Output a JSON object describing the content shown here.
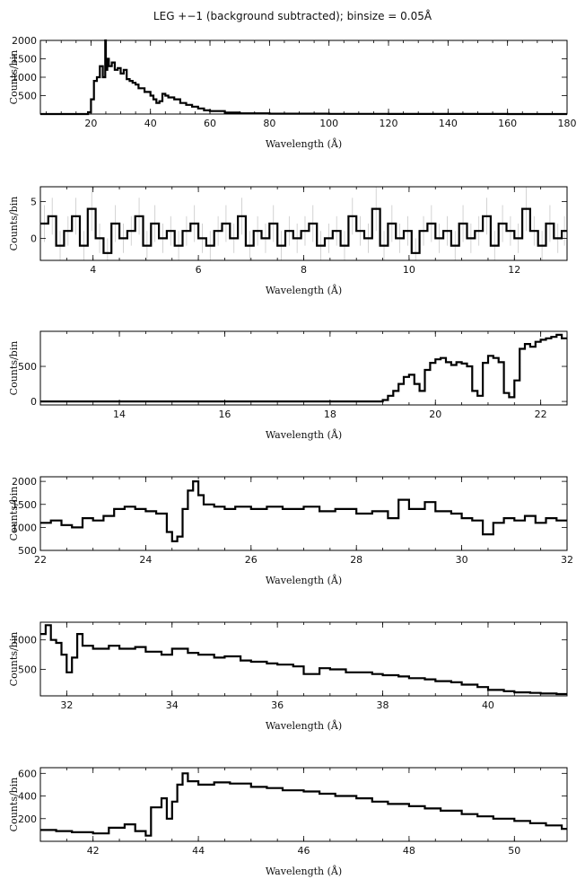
{
  "figure": {
    "title": "LEG +−1 (background subtracted); binsize = 0.05Å"
  },
  "chart_data": [
    {
      "type": "line",
      "step": true,
      "xlabel": "Wavelength (Å)",
      "ylabel": "Counts/bin",
      "xlim": [
        3,
        180
      ],
      "ylim": [
        0,
        2000
      ],
      "xticks": [
        20,
        40,
        60,
        80,
        100,
        120,
        140,
        160,
        180
      ],
      "yticks": [
        500,
        1000,
        1500,
        2000
      ],
      "x": [
        3,
        18,
        19,
        20,
        21,
        22,
        23,
        24,
        24.8,
        25,
        25.5,
        26,
        27,
        28,
        29,
        30,
        31,
        32,
        33,
        34,
        35,
        36,
        38,
        40,
        41,
        42,
        43,
        44,
        45,
        46,
        48,
        50,
        52,
        54,
        56,
        58,
        60,
        65,
        70,
        80,
        100,
        120,
        140,
        160,
        180
      ],
      "y": [
        0,
        0,
        50,
        400,
        900,
        1000,
        1300,
        1000,
        2000,
        1200,
        1500,
        1300,
        1400,
        1200,
        1250,
        1100,
        1200,
        950,
        900,
        850,
        800,
        700,
        600,
        500,
        400,
        300,
        350,
        550,
        500,
        450,
        400,
        300,
        250,
        200,
        150,
        100,
        80,
        40,
        20,
        10,
        5,
        3,
        2,
        1,
        0
      ]
    },
    {
      "type": "line",
      "step": true,
      "xlabel": "Wavelength (Å)",
      "ylabel": "Counts/bin",
      "xlim": [
        3,
        13
      ],
      "ylim": [
        -3,
        7
      ],
      "xticks": [
        4,
        6,
        8,
        10,
        12
      ],
      "yticks": [
        0,
        5
      ],
      "x": [
        3,
        3.15,
        3.3,
        3.45,
        3.6,
        3.75,
        3.9,
        4.05,
        4.2,
        4.35,
        4.5,
        4.65,
        4.8,
        4.95,
        5.1,
        5.25,
        5.4,
        5.55,
        5.7,
        5.85,
        6,
        6.15,
        6.3,
        6.45,
        6.6,
        6.75,
        6.9,
        7.05,
        7.2,
        7.35,
        7.5,
        7.65,
        7.8,
        7.95,
        8.1,
        8.25,
        8.4,
        8.55,
        8.7,
        8.85,
        9,
        9.15,
        9.3,
        9.45,
        9.6,
        9.75,
        9.9,
        10.05,
        10.2,
        10.35,
        10.5,
        10.65,
        10.8,
        10.95,
        11.1,
        11.25,
        11.4,
        11.55,
        11.7,
        11.85,
        12,
        12.15,
        12.3,
        12.45,
        12.6,
        12.75,
        12.9
      ],
      "y": [
        2,
        3,
        -1,
        1,
        3,
        -1,
        4,
        0,
        -2,
        2,
        0,
        1,
        3,
        -1,
        2,
        0,
        1,
        -1,
        1,
        2,
        0,
        -1,
        1,
        2,
        0,
        3,
        -1,
        1,
        0,
        2,
        -1,
        1,
        0,
        1,
        2,
        -1,
        0,
        1,
        -1,
        3,
        1,
        0,
        4,
        -1,
        2,
        0,
        1,
        -2,
        1,
        2,
        0,
        1,
        -1,
        2,
        0,
        1,
        3,
        -1,
        2,
        1,
        0,
        4,
        1,
        -1,
        2,
        0,
        1
      ],
      "errors": [
        2.5,
        2.5,
        2,
        2,
        2.5,
        2,
        3,
        2,
        2,
        2.5,
        2,
        2,
        2.5,
        2,
        2.5,
        2,
        2,
        2,
        2,
        2.5,
        2,
        2,
        2,
        2.5,
        2,
        2.5,
        2,
        2,
        2,
        2.5,
        2,
        2,
        2,
        2,
        2.5,
        2,
        2,
        2,
        2,
        2.5,
        2,
        2,
        3,
        2,
        2.5,
        2,
        2,
        2,
        2,
        2.5,
        2,
        2,
        2,
        2.5,
        2,
        2,
        2.5,
        2,
        2.5,
        2,
        2,
        3,
        2,
        2,
        2.5,
        2,
        2
      ]
    },
    {
      "type": "line",
      "step": true,
      "xlabel": "Wavelength (Å)",
      "ylabel": "Counts/bin",
      "xlim": [
        12.5,
        22.5
      ],
      "ylim": [
        -50,
        1000
      ],
      "xticks": [
        14,
        16,
        18,
        20,
        22
      ],
      "yticks": [
        0,
        500
      ],
      "x": [
        12.5,
        19.0,
        19.1,
        19.2,
        19.3,
        19.4,
        19.5,
        19.6,
        19.7,
        19.8,
        19.9,
        20.0,
        20.1,
        20.2,
        20.3,
        20.4,
        20.5,
        20.6,
        20.7,
        20.8,
        20.9,
        21.0,
        21.1,
        21.2,
        21.3,
        21.4,
        21.5,
        21.6,
        21.7,
        21.8,
        21.9,
        22.0,
        22.1,
        22.2,
        22.3,
        22.4
      ],
      "y": [
        0,
        20,
        80,
        150,
        250,
        350,
        380,
        250,
        150,
        450,
        550,
        600,
        620,
        560,
        520,
        560,
        540,
        500,
        150,
        80,
        550,
        650,
        620,
        560,
        120,
        60,
        300,
        750,
        820,
        780,
        850,
        880,
        900,
        920,
        950,
        900
      ]
    },
    {
      "type": "line",
      "step": true,
      "xlabel": "Wavelength (Å)",
      "ylabel": "Counts/bin",
      "xlim": [
        22,
        32
      ],
      "ylim": [
        500,
        2100
      ],
      "xticks": [
        22,
        24,
        26,
        28,
        30,
        32
      ],
      "yticks": [
        500,
        1000,
        1500,
        2000
      ],
      "x": [
        22,
        22.2,
        22.4,
        22.6,
        22.8,
        23.0,
        23.2,
        23.4,
        23.6,
        23.8,
        24.0,
        24.2,
        24.4,
        24.5,
        24.6,
        24.7,
        24.8,
        24.9,
        25.0,
        25.1,
        25.3,
        25.5,
        25.7,
        26.0,
        26.3,
        26.6,
        27.0,
        27.3,
        27.6,
        28.0,
        28.3,
        28.6,
        28.8,
        29.0,
        29.3,
        29.5,
        29.8,
        30.0,
        30.2,
        30.4,
        30.6,
        30.8,
        31.0,
        31.2,
        31.4,
        31.6,
        31.8
      ],
      "y": [
        1100,
        1150,
        1050,
        1000,
        1200,
        1150,
        1250,
        1400,
        1450,
        1400,
        1350,
        1300,
        900,
        700,
        800,
        1400,
        1800,
        2000,
        1700,
        1500,
        1450,
        1400,
        1450,
        1400,
        1450,
        1400,
        1450,
        1350,
        1400,
        1300,
        1350,
        1200,
        1600,
        1400,
        1550,
        1350,
        1300,
        1200,
        1150,
        850,
        1100,
        1200,
        1150,
        1250,
        1100,
        1200,
        1150
      ]
    },
    {
      "type": "line",
      "step": true,
      "xlabel": "Wavelength (Å)",
      "ylabel": "Counts/bin",
      "xlim": [
        31.5,
        41.5
      ],
      "ylim": [
        50,
        1300
      ],
      "xticks": [
        32,
        34,
        36,
        38,
        40
      ],
      "yticks": [
        500,
        1000
      ],
      "x": [
        31.5,
        31.6,
        31.7,
        31.8,
        31.9,
        32.0,
        32.1,
        32.2,
        32.3,
        32.5,
        32.8,
        33.0,
        33.3,
        33.5,
        33.8,
        34.0,
        34.3,
        34.5,
        34.8,
        35.0,
        35.3,
        35.5,
        35.8,
        36.0,
        36.3,
        36.5,
        36.8,
        37.0,
        37.3,
        37.5,
        37.8,
        38.0,
        38.3,
        38.5,
        38.8,
        39.0,
        39.3,
        39.5,
        39.8,
        40.0,
        40.3,
        40.5,
        40.8,
        41.0,
        41.3
      ],
      "y": [
        1100,
        1250,
        1000,
        950,
        750,
        450,
        700,
        1100,
        900,
        850,
        900,
        850,
        880,
        800,
        750,
        850,
        780,
        750,
        700,
        720,
        650,
        630,
        600,
        580,
        550,
        420,
        520,
        500,
        450,
        450,
        420,
        400,
        380,
        350,
        330,
        300,
        280,
        240,
        200,
        150,
        130,
        110,
        100,
        90,
        80
      ]
    },
    {
      "type": "line",
      "step": true,
      "xlabel": "Wavelength (Å)",
      "ylabel": "Counts/bin",
      "xlim": [
        41,
        51
      ],
      "ylim": [
        0,
        650
      ],
      "xticks": [
        42,
        44,
        46,
        48,
        50
      ],
      "yticks": [
        200,
        400,
        600
      ],
      "x": [
        41,
        41.3,
        41.6,
        42.0,
        42.3,
        42.6,
        42.8,
        43.0,
        43.1,
        43.3,
        43.4,
        43.5,
        43.6,
        43.7,
        43.8,
        44.0,
        44.3,
        44.6,
        45.0,
        45.3,
        45.6,
        46.0,
        46.3,
        46.6,
        47.0,
        47.3,
        47.6,
        48.0,
        48.3,
        48.6,
        49.0,
        49.3,
        49.6,
        50.0,
        50.3,
        50.6,
        50.9
      ],
      "y": [
        100,
        90,
        80,
        70,
        120,
        150,
        90,
        50,
        300,
        380,
        200,
        350,
        500,
        600,
        530,
        500,
        520,
        510,
        480,
        470,
        450,
        440,
        420,
        400,
        380,
        350,
        330,
        310,
        290,
        270,
        240,
        220,
        200,
        180,
        160,
        140,
        110
      ]
    }
  ]
}
